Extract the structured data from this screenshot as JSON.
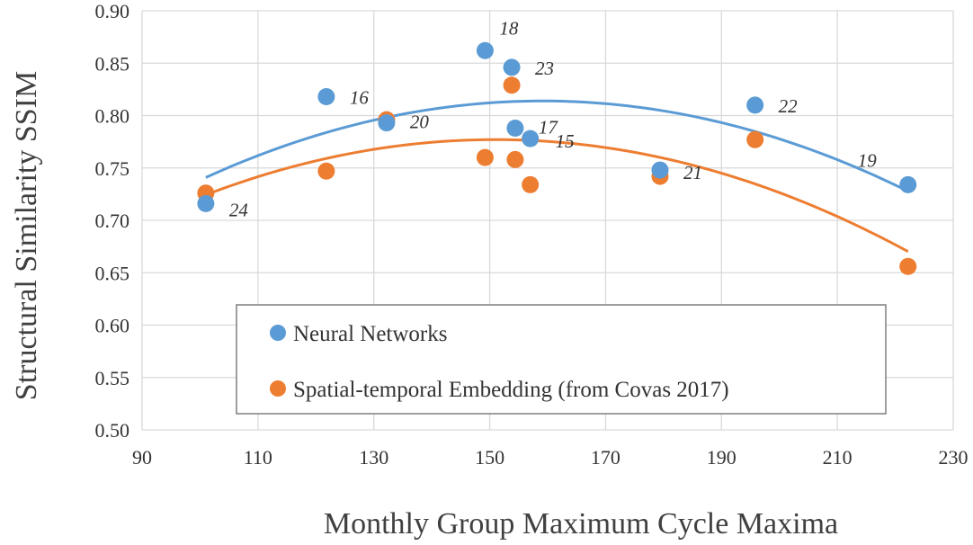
{
  "chart_data": {
    "type": "scatter",
    "title": "",
    "xlabel": "Monthly Group Maximum Cycle Maxima",
    "ylabel": "Structural Similarity SSIM",
    "xlim": [
      90,
      230
    ],
    "ylim": [
      0.5,
      0.9
    ],
    "x_ticks": [
      "90",
      "110",
      "130",
      "150",
      "170",
      "190",
      "210",
      "230"
    ],
    "y_ticks": [
      "0.50",
      "0.55",
      "0.60",
      "0.65",
      "0.70",
      "0.75",
      "0.80",
      "0.85",
      "0.90"
    ],
    "grid": true,
    "legend_position": "bottom-left",
    "series": [
      {
        "name": "Neural Networks",
        "color": "#5B9BD5",
        "points": [
          {
            "x": 101,
            "y": 0.716
          },
          {
            "x": 121.8,
            "y": 0.818
          },
          {
            "x": 132.2,
            "y": 0.793
          },
          {
            "x": 149.2,
            "y": 0.862
          },
          {
            "x": 153.8,
            "y": 0.846
          },
          {
            "x": 154.4,
            "y": 0.788
          },
          {
            "x": 157,
            "y": 0.778
          },
          {
            "x": 179.4,
            "y": 0.748
          },
          {
            "x": 195.8,
            "y": 0.81
          },
          {
            "x": 222.2,
            "y": 0.734
          }
        ],
        "trend": "quadratic"
      },
      {
        "name": "Spatial-temporal Embedding (from Covas 2017)",
        "color": "#ED7D31",
        "points": [
          {
            "x": 101,
            "y": 0.726
          },
          {
            "x": 121.8,
            "y": 0.747
          },
          {
            "x": 132.2,
            "y": 0.796
          },
          {
            "x": 149.2,
            "y": 0.76
          },
          {
            "x": 153.8,
            "y": 0.829
          },
          {
            "x": 154.4,
            "y": 0.758
          },
          {
            "x": 157,
            "y": 0.734
          },
          {
            "x": 179.4,
            "y": 0.742
          },
          {
            "x": 195.8,
            "y": 0.777
          },
          {
            "x": 222.2,
            "y": 0.656
          }
        ],
        "trend": "quadratic"
      }
    ],
    "annotations": [
      {
        "text": "24",
        "x": 101,
        "y": 0.716,
        "dx": 26,
        "dy": 14
      },
      {
        "text": "16",
        "x": 121.8,
        "y": 0.818,
        "dx": 26,
        "dy": 8
      },
      {
        "text": "20",
        "x": 132.2,
        "y": 0.793,
        "dx": 26,
        "dy": 6
      },
      {
        "text": "18",
        "x": 149.2,
        "y": 0.862,
        "dx": 16,
        "dy": -18
      },
      {
        "text": "23",
        "x": 153.8,
        "y": 0.846,
        "dx": 26,
        "dy": 8
      },
      {
        "text": "17",
        "x": 154.4,
        "y": 0.788,
        "dx": 26,
        "dy": 6
      },
      {
        "text": "15",
        "x": 157,
        "y": 0.778,
        "dx": 28,
        "dy": 10
      },
      {
        "text": "21",
        "x": 179.4,
        "y": 0.748,
        "dx": 26,
        "dy": 10
      },
      {
        "text": "22",
        "x": 195.8,
        "y": 0.81,
        "dx": 26,
        "dy": 8
      },
      {
        "text": "19",
        "x": 222.2,
        "y": 0.734,
        "dx": -56,
        "dy": -20
      }
    ]
  }
}
